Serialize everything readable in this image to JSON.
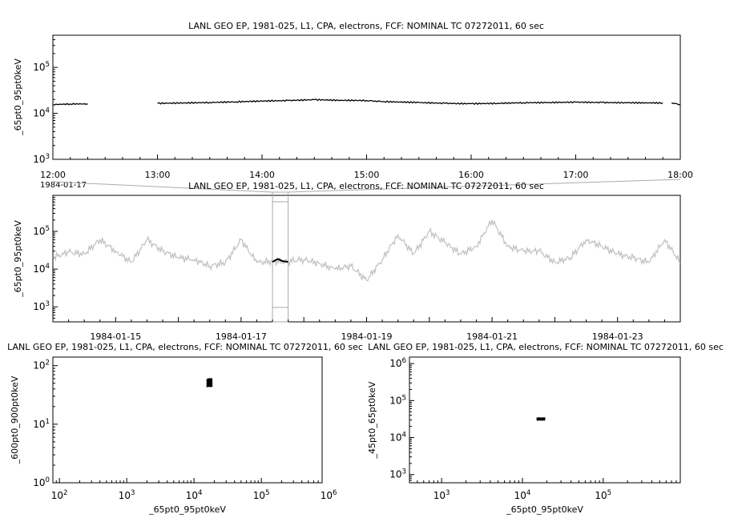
{
  "chart_data": [
    {
      "type": "line",
      "title": "LANL GEO EP, 1981-025, L1, CPA, electrons, FCF: NOMINAL TC 07272011, 60 sec",
      "ylabel": "_65pt0_95pt0keV",
      "yscale": "log",
      "ylim": [
        1000,
        500000
      ],
      "yticks": [
        "10^3",
        "10^4",
        "10^5"
      ],
      "xlim": [
        "12:00",
        "18:00"
      ],
      "xticks": [
        "12:00",
        "13:00",
        "14:00",
        "15:00",
        "16:00",
        "17:00",
        "18:00"
      ],
      "xdate": "1984-01-17",
      "series": [
        {
          "color": "#000000",
          "x": [
            "12:00",
            "12:10",
            "12:20",
            "13:00",
            "13:15",
            "13:30",
            "13:45",
            "14:00",
            "14:15",
            "14:30",
            "14:45",
            "15:00",
            "15:05",
            "15:10",
            "15:30",
            "15:45",
            "16:00",
            "16:15",
            "16:30",
            "16:45",
            "17:00",
            "17:15",
            "17:30",
            "17:50",
            "17:55",
            "18:00"
          ],
          "values": [
            15500,
            16000,
            16000,
            16500,
            16800,
            17200,
            17800,
            18500,
            19000,
            19800,
            19200,
            19000,
            18600,
            18000,
            17200,
            16500,
            16200,
            16500,
            17000,
            17200,
            17500,
            17200,
            17000,
            16800,
            17000,
            15500
          ],
          "gaps_after": [
            "12:20",
            "17:50"
          ]
        }
      ]
    },
    {
      "type": "line",
      "title": "LANL GEO EP, 1981-025, L1, CPA, electrons, FCF: NOMINAL TC 07272011, 60 sec",
      "ylabel": "_65pt0_95pt0keV",
      "yscale": "log",
      "ylim": [
        400,
        900000
      ],
      "yticks": [
        "10^3",
        "10^4",
        "10^5"
      ],
      "xlim": [
        "1984-01-14",
        "1984-01-24"
      ],
      "xticks": [
        "1984-01-15",
        "1984-01-17",
        "1984-01-19",
        "1984-01-21",
        "1984-01-23"
      ],
      "highlight_range": [
        "1984-01-17 12:00",
        "1984-01-17 18:00"
      ],
      "series": [
        {
          "color": "#c0c0c0",
          "x": [
            "1984-01-14 00:00",
            "1984-01-14 06:00",
            "1984-01-14 12:00",
            "1984-01-14 18:00",
            "1984-01-15 00:00",
            "1984-01-15 06:00",
            "1984-01-15 12:00",
            "1984-01-15 18:00",
            "1984-01-16 00:00",
            "1984-01-16 06:00",
            "1984-01-16 12:00",
            "1984-01-16 18:00",
            "1984-01-17 00:00",
            "1984-01-17 06:00",
            "1984-01-17 12:00",
            "1984-01-17 18:00",
            "1984-01-18 00:00",
            "1984-01-18 06:00",
            "1984-01-18 12:00",
            "1984-01-18 18:00",
            "1984-01-19 00:00",
            "1984-01-19 06:00",
            "1984-01-19 12:00",
            "1984-01-19 18:00",
            "1984-01-20 00:00",
            "1984-01-20 06:00",
            "1984-01-20 12:00",
            "1984-01-20 18:00",
            "1984-01-21 00:00",
            "1984-01-21 06:00",
            "1984-01-21 12:00",
            "1984-01-21 18:00",
            "1984-01-22 00:00",
            "1984-01-22 06:00",
            "1984-01-22 12:00",
            "1984-01-22 18:00",
            "1984-01-23 00:00",
            "1984-01-23 06:00",
            "1984-01-23 12:00",
            "1984-01-23 18:00",
            "1984-01-24 00:00"
          ],
          "values": [
            20000,
            28000,
            25000,
            60000,
            30000,
            15000,
            60000,
            30000,
            20000,
            18000,
            12000,
            15000,
            60000,
            15000,
            16000,
            16000,
            18000,
            14000,
            10000,
            12000,
            5000,
            18000,
            80000,
            25000,
            100000,
            50000,
            25000,
            40000,
            200000,
            40000,
            30000,
            30000,
            15000,
            20000,
            60000,
            40000,
            25000,
            20000,
            15000,
            60000,
            15000
          ]
        },
        {
          "color": "#000000",
          "x": [
            "1984-01-17 12:00",
            "1984-01-17 14:00",
            "1984-01-17 16:00",
            "1984-01-17 18:00"
          ],
          "values": [
            15500,
            18500,
            16200,
            15500
          ]
        }
      ]
    },
    {
      "type": "scatter",
      "title": "LANL GEO EP, 1981-025, L1, CPA, electrons, FCF: NOMINAL TC 07272011, 60 sec",
      "xlabel": "_65pt0_95pt0keV",
      "ylabel": "_600pt0_900pt0keV",
      "xscale": "log",
      "yscale": "log",
      "xlim": [
        80,
        800000
      ],
      "ylim": [
        1,
        140
      ],
      "xticks": [
        "10^2",
        "10^3",
        "10^4",
        "10^5",
        "10^6"
      ],
      "yticks": [
        "10^0",
        "10^1",
        "10^2"
      ],
      "cluster": {
        "x_center": 17000,
        "x_spread": 1500,
        "y_center": 52,
        "y_spread": 8,
        "color": "#000000"
      }
    },
    {
      "type": "scatter",
      "title": "LANL GEO EP, 1981-025, L1, CPA, electrons, FCF: NOMINAL TC 07272011, 60 sec",
      "xlabel": "_65pt0_95pt0keV",
      "ylabel": "_45pt0_65pt0keV",
      "xscale": "log",
      "yscale": "log",
      "xlim": [
        400,
        900000
      ],
      "ylim": [
        600,
        1500000
      ],
      "xticks": [
        "10^3",
        "10^4",
        "10^5"
      ],
      "yticks": [
        "10^3",
        "10^4",
        "10^5",
        "10^6"
      ],
      "cluster": {
        "x_center": 17000,
        "x_spread": 1800,
        "y_center": 32000,
        "y_spread": 2200,
        "color": "#000000"
      }
    }
  ]
}
